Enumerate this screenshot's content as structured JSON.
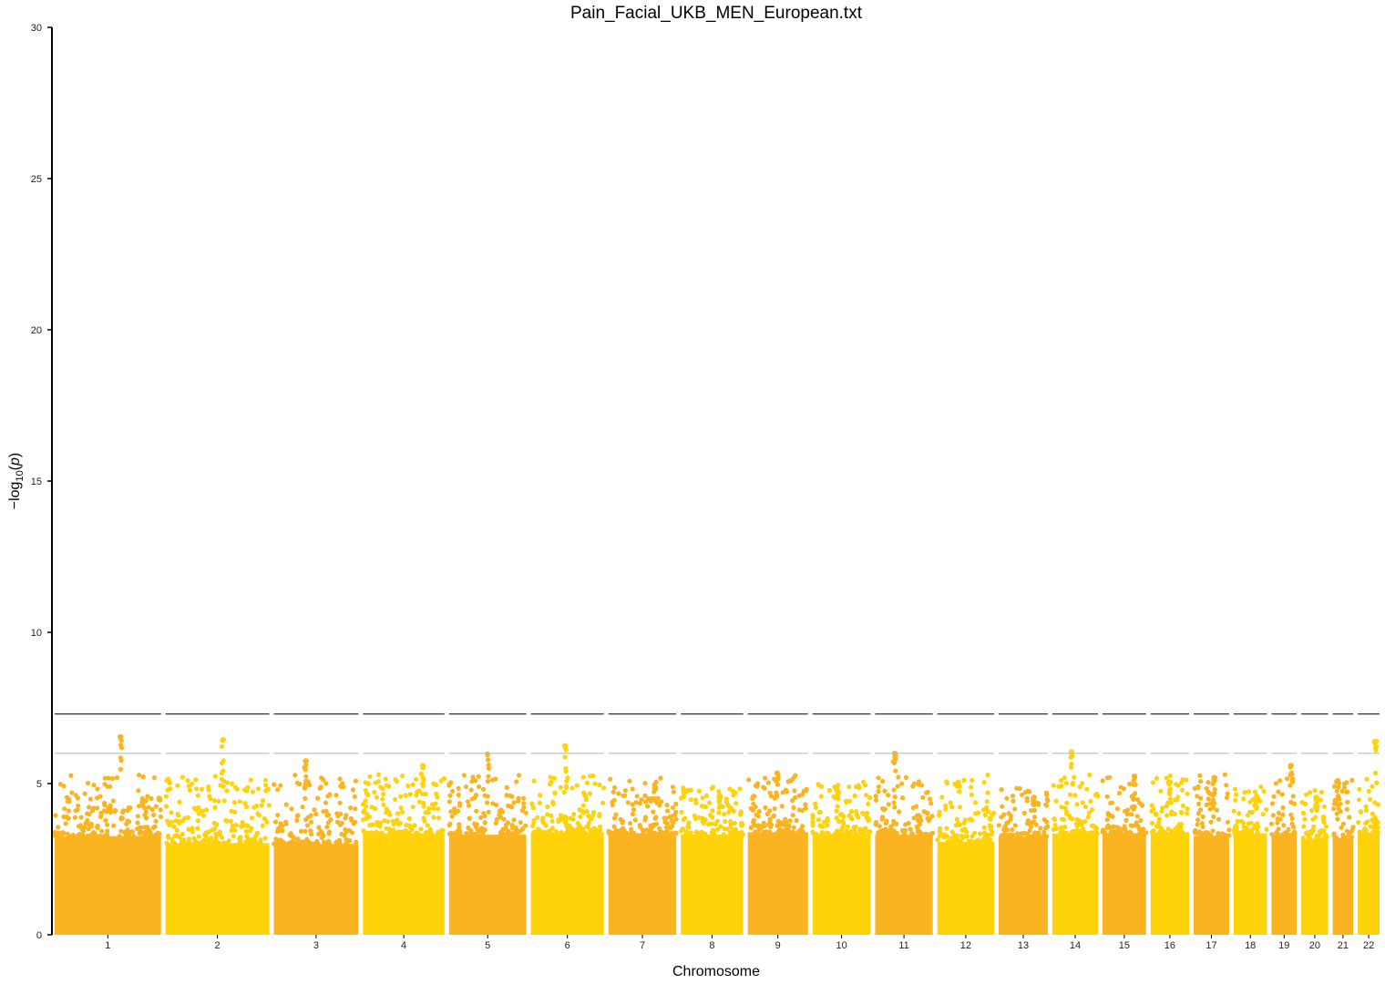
{
  "chart_data": {
    "type": "scatter",
    "subtype": "manhattan",
    "title": "Pain_Facial_UKB_MEN_European.txt",
    "xlabel": "Chromosome",
    "ylabel": "-log10(p)",
    "ylim": [
      0,
      30
    ],
    "yticks": [
      0,
      5,
      10,
      15,
      20,
      25,
      30
    ],
    "grid": false,
    "legend": "none",
    "thresholds": [
      {
        "name": "genome-wide",
        "value": 7.3,
        "color": "#333333"
      },
      {
        "name": "suggestive",
        "value": 6.0,
        "color": "#bbbbbb"
      }
    ],
    "colors": [
      "#fbb421",
      "#ffd20a"
    ],
    "chromosomes": [
      {
        "label": "1",
        "size": 249,
        "peak": 6.55
      },
      {
        "label": "2",
        "size": 243,
        "peak": 6.45
      },
      {
        "label": "3",
        "size": 198,
        "peak": 5.75
      },
      {
        "label": "4",
        "size": 191,
        "peak": 5.6
      },
      {
        "label": "5",
        "size": 181,
        "peak": 5.98
      },
      {
        "label": "6",
        "size": 171,
        "peak": 6.25
      },
      {
        "label": "7",
        "size": 159,
        "peak": 4.95
      },
      {
        "label": "8",
        "size": 146,
        "peak": 4.6
      },
      {
        "label": "9",
        "size": 141,
        "peak": 5.35
      },
      {
        "label": "10",
        "size": 136,
        "peak": 4.75
      },
      {
        "label": "11",
        "size": 135,
        "peak": 6.0
      },
      {
        "label": "12",
        "size": 133,
        "peak": 5.05
      },
      {
        "label": "13",
        "size": 115,
        "peak": 4.55
      },
      {
        "label": "14",
        "size": 107,
        "peak": 6.05
      },
      {
        "label": "15",
        "size": 102,
        "peak": 5.25
      },
      {
        "label": "16",
        "size": 90,
        "peak": 5.05
      },
      {
        "label": "17",
        "size": 83,
        "peak": 5.2
      },
      {
        "label": "18",
        "size": 78,
        "peak": 4.6
      },
      {
        "label": "19",
        "size": 59,
        "peak": 5.6
      },
      {
        "label": "20",
        "size": 63,
        "peak": 4.55
      },
      {
        "label": "21",
        "size": 48,
        "peak": 5.1
      },
      {
        "label": "22",
        "size": 51,
        "peak": 6.4
      }
    ]
  }
}
